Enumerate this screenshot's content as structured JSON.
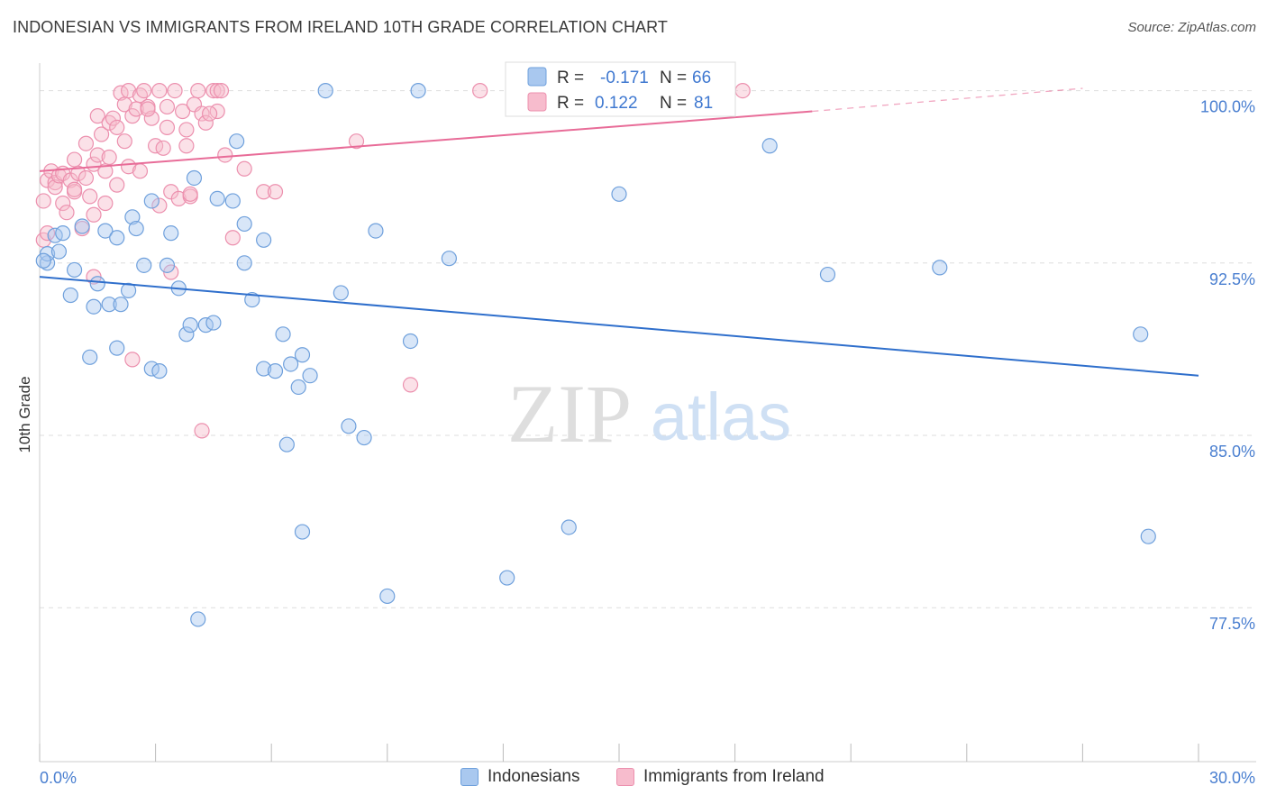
{
  "title": "INDONESIAN VS IMMIGRANTS FROM IRELAND 10TH GRADE CORRELATION CHART",
  "source": "Source: ZipAtlas.com",
  "watermark": {
    "zip": "ZIP",
    "atlas": "atlas"
  },
  "colors": {
    "blue_fill": "#a9c8ef",
    "blue_stroke": "#6fa0dc",
    "blue_line": "#2f6fcc",
    "pink_fill": "#f7bccd",
    "pink_stroke": "#ec90ae",
    "pink_line": "#e86c98",
    "tick_label": "#4a7fd0",
    "grid": "#dddddd"
  },
  "legend_top": [
    {
      "r_label": "R =",
      "r_value": "-0.171",
      "n_label": "N =",
      "n_value": "66"
    },
    {
      "r_label": "R =",
      "r_value": "0.122",
      "n_label": "N =",
      "n_value": "81"
    }
  ],
  "chart_data": {
    "type": "scatter",
    "xlabel": "",
    "ylabel": "10th Grade",
    "xlim": [
      0,
      30
    ],
    "ylim": [
      70.8,
      101.2
    ],
    "x_tick_labels": [
      "0.0%",
      "30.0%"
    ],
    "y_ticks": [
      100.0,
      92.5,
      85.0,
      77.5
    ],
    "y_tick_labels": [
      "100.0%",
      "92.5%",
      "85.0%",
      "77.5%"
    ],
    "grid": true,
    "legend_position": "bottom",
    "series": [
      {
        "name": "Indonesians",
        "color": "#6fa0dc",
        "trend": {
          "x": [
            0.0,
            30.0
          ],
          "y": [
            91.9,
            87.6
          ],
          "dashed_from": null
        },
        "points": [
          [
            0.2,
            92.5
          ],
          [
            0.2,
            92.9
          ],
          [
            0.4,
            93.7
          ],
          [
            0.5,
            93.0
          ],
          [
            0.6,
            93.8
          ],
          [
            0.8,
            91.1
          ],
          [
            0.9,
            92.2
          ],
          [
            1.3,
            88.4
          ],
          [
            1.4,
            90.6
          ],
          [
            1.5,
            91.6
          ],
          [
            1.7,
            93.9
          ],
          [
            1.8,
            90.7
          ],
          [
            2.0,
            88.8
          ],
          [
            2.1,
            90.7
          ],
          [
            2.3,
            91.3
          ],
          [
            2.4,
            94.5
          ],
          [
            2.5,
            94.0
          ],
          [
            2.7,
            92.4
          ],
          [
            2.9,
            95.2
          ],
          [
            2.9,
            87.9
          ],
          [
            3.1,
            87.8
          ],
          [
            3.3,
            92.4
          ],
          [
            3.4,
            93.8
          ],
          [
            3.6,
            91.4
          ],
          [
            3.8,
            89.4
          ],
          [
            3.9,
            89.8
          ],
          [
            4.0,
            96.2
          ],
          [
            4.3,
            89.8
          ],
          [
            4.5,
            89.9
          ],
          [
            5.0,
            95.2
          ],
          [
            5.1,
            97.8
          ],
          [
            5.3,
            94.2
          ],
          [
            5.3,
            92.5
          ],
          [
            5.5,
            90.9
          ],
          [
            5.8,
            87.9
          ],
          [
            5.8,
            93.5
          ],
          [
            6.1,
            87.8
          ],
          [
            6.3,
            89.4
          ],
          [
            6.4,
            84.6
          ],
          [
            6.5,
            88.1
          ],
          [
            6.7,
            87.1
          ],
          [
            6.8,
            88.5
          ],
          [
            7.0,
            87.6
          ],
          [
            7.4,
            100.0
          ],
          [
            7.8,
            91.2
          ],
          [
            8.0,
            85.4
          ],
          [
            8.4,
            84.9
          ],
          [
            8.7,
            93.9
          ],
          [
            9.0,
            78.0
          ],
          [
            9.6,
            89.1
          ],
          [
            9.8,
            100.0
          ],
          [
            10.6,
            92.7
          ],
          [
            12.1,
            78.8
          ],
          [
            13.7,
            81.0
          ],
          [
            15.0,
            95.5
          ],
          [
            18.9,
            97.6
          ],
          [
            20.4,
            92.0
          ],
          [
            23.3,
            92.3
          ],
          [
            28.5,
            89.4
          ],
          [
            28.7,
            80.6
          ],
          [
            4.1,
            77.0
          ],
          [
            6.8,
            80.8
          ],
          [
            0.1,
            92.6
          ],
          [
            2.0,
            93.6
          ],
          [
            4.6,
            95.3
          ],
          [
            1.1,
            94.1
          ]
        ]
      },
      {
        "name": "Immigrants from Ireland",
        "color": "#ec90ae",
        "trend": {
          "x": [
            0.0,
            20.0,
            27.0
          ],
          "y": [
            96.5,
            99.1,
            100.1
          ],
          "dashed_from": 20.0
        },
        "points": [
          [
            0.1,
            95.2
          ],
          [
            0.1,
            93.5
          ],
          [
            0.2,
            96.1
          ],
          [
            0.2,
            93.8
          ],
          [
            0.3,
            96.5
          ],
          [
            0.4,
            96.0
          ],
          [
            0.4,
            95.8
          ],
          [
            0.5,
            96.3
          ],
          [
            0.6,
            96.4
          ],
          [
            0.6,
            95.1
          ],
          [
            0.7,
            94.7
          ],
          [
            0.8,
            96.1
          ],
          [
            0.9,
            95.6
          ],
          [
            0.9,
            97.0
          ],
          [
            1.0,
            96.4
          ],
          [
            1.1,
            94.0
          ],
          [
            1.2,
            96.2
          ],
          [
            1.2,
            97.7
          ],
          [
            1.3,
            95.4
          ],
          [
            1.4,
            94.6
          ],
          [
            1.4,
            96.8
          ],
          [
            1.5,
            98.9
          ],
          [
            1.5,
            97.2
          ],
          [
            1.6,
            98.1
          ],
          [
            1.7,
            95.1
          ],
          [
            1.7,
            96.5
          ],
          [
            1.8,
            98.6
          ],
          [
            1.8,
            97.1
          ],
          [
            1.9,
            98.8
          ],
          [
            2.0,
            95.9
          ],
          [
            2.0,
            98.4
          ],
          [
            2.1,
            99.9
          ],
          [
            2.2,
            99.4
          ],
          [
            2.2,
            97.8
          ],
          [
            2.3,
            100.0
          ],
          [
            2.3,
            96.7
          ],
          [
            2.4,
            98.9
          ],
          [
            2.5,
            99.2
          ],
          [
            2.6,
            99.8
          ],
          [
            2.6,
            96.5
          ],
          [
            2.7,
            100.0
          ],
          [
            2.8,
            99.3
          ],
          [
            2.9,
            98.8
          ],
          [
            3.0,
            97.6
          ],
          [
            3.1,
            100.0
          ],
          [
            3.1,
            95.0
          ],
          [
            3.2,
            97.5
          ],
          [
            3.3,
            99.3
          ],
          [
            3.3,
            98.4
          ],
          [
            3.4,
            95.6
          ],
          [
            3.5,
            100.0
          ],
          [
            3.6,
            95.3
          ],
          [
            3.7,
            99.1
          ],
          [
            3.8,
            98.3
          ],
          [
            3.8,
            97.6
          ],
          [
            3.9,
            95.4
          ],
          [
            4.0,
            99.4
          ],
          [
            4.1,
            100.0
          ],
          [
            4.2,
            99.0
          ],
          [
            4.3,
            98.6
          ],
          [
            4.5,
            100.0
          ],
          [
            4.6,
            100.0
          ],
          [
            4.6,
            99.1
          ],
          [
            4.7,
            100.0
          ],
          [
            4.8,
            97.2
          ],
          [
            5.0,
            93.6
          ],
          [
            5.3,
            96.6
          ],
          [
            5.8,
            95.6
          ],
          [
            6.1,
            95.6
          ],
          [
            8.2,
            97.8
          ],
          [
            9.6,
            87.2
          ],
          [
            11.4,
            100.0
          ],
          [
            18.2,
            100.0
          ],
          [
            4.2,
            85.2
          ],
          [
            3.4,
            92.1
          ],
          [
            2.4,
            88.3
          ],
          [
            1.4,
            91.9
          ],
          [
            0.9,
            95.7
          ],
          [
            3.9,
            95.5
          ],
          [
            2.8,
            99.2
          ],
          [
            4.4,
            99.0
          ]
        ]
      }
    ]
  }
}
